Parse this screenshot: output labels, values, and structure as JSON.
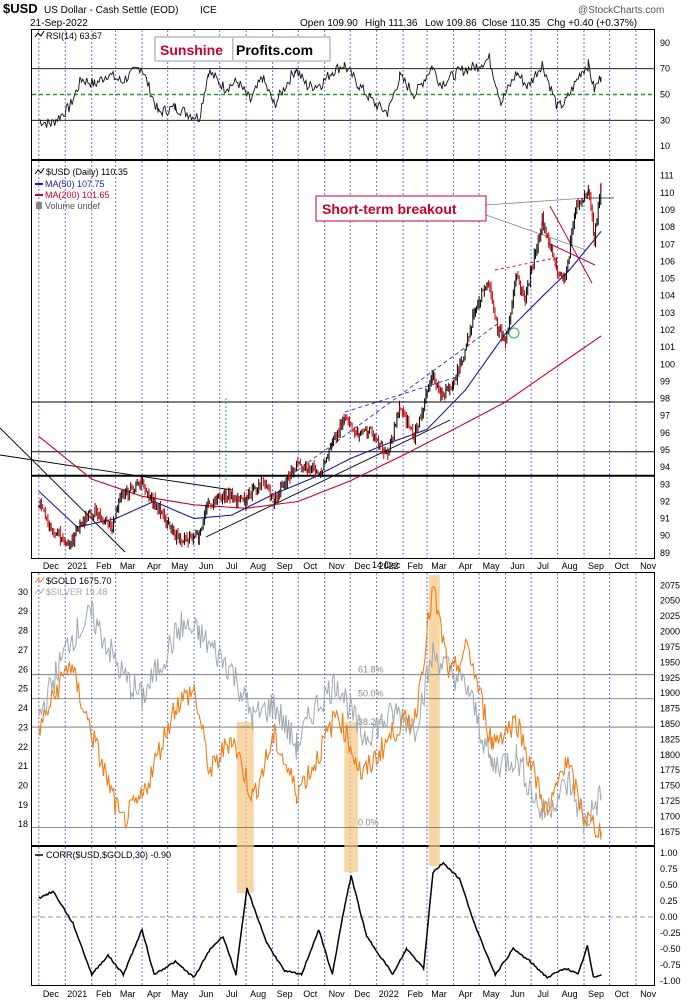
{
  "header": {
    "symbol": "$USD",
    "description": "US Dollar - Cash Settle (EOD)",
    "exchange": "ICE",
    "date": "21-Sep-2022",
    "open": "Open 109.90",
    "high": "High 111.36",
    "low": "Low 109.86",
    "close": "Close 110.35",
    "change": "Chg +0.40 (+0.37%)",
    "watermark": "@StockCharts.com",
    "brand_left": "Sunshine",
    "brand_right": "Profits.com"
  },
  "colors": {
    "price": "#000000",
    "up_candle": "#000000",
    "down_candle": "#cc0000",
    "ma50": "#1a1aaa",
    "ma200": "#cc0022",
    "gold": "#f07f1a",
    "silver": "#a0a8b0",
    "rsi_mid": "#229922",
    "highlight": "#f5c98a",
    "vgrid": "#3344dd",
    "brand_red": "#cc0033"
  },
  "x_axis": {
    "labels": [
      "Dec",
      "2021",
      "Feb",
      "Mar",
      "Apr",
      "May",
      "Jun",
      "Jul",
      "Aug",
      "Sep",
      "Oct",
      "Nov",
      "Dec",
      "2022",
      "Feb",
      "Mar",
      "Apr",
      "May",
      "Jun",
      "Jul",
      "Aug",
      "Sep",
      "Oct",
      "Nov"
    ],
    "bold_labels": [
      "2021",
      "2022"
    ]
  },
  "annotations": {
    "breakout_label": "Short-term breakout",
    "breakout_date": "2022-08-22",
    "breakout_level": 109.3,
    "gap_label": "14 Dec",
    "gold_highlight_periods": [
      {
        "start": "2021-07-21",
        "end": "2021-08-10"
      },
      {
        "start": "2021-11-24",
        "end": "2021-12-10"
      },
      {
        "start": "2022-03-03",
        "end": "2022-03-16"
      }
    ]
  },
  "chart_data": [
    {
      "type": "line",
      "panel": "rsi",
      "legend": "RSI(14) 63.67",
      "y_ticks": [
        "90",
        "70",
        "50",
        "30",
        "10"
      ],
      "ylim": [
        0,
        100
      ],
      "reference_lines": [
        70,
        50,
        30
      ],
      "series": [
        {
          "x": [
            "2020-12-01",
            "2020-12-15",
            "2021-01-06",
            "2021-01-20",
            "2021-02-05",
            "2021-02-20",
            "2021-03-08",
            "2021-03-31",
            "2021-04-20",
            "2021-05-10",
            "2021-05-26",
            "2021-06-07",
            "2021-06-18",
            "2021-07-07",
            "2021-07-22",
            "2021-08-06",
            "2021-08-20",
            "2021-09-03",
            "2021-09-28",
            "2021-10-12",
            "2021-10-28",
            "2021-11-10",
            "2021-11-24",
            "2021-12-10",
            "2021-12-31",
            "2022-01-14",
            "2022-01-28",
            "2022-02-15",
            "2022-03-07",
            "2022-03-17",
            "2022-04-08",
            "2022-04-28",
            "2022-05-13",
            "2022-05-27",
            "2022-06-14",
            "2022-06-27",
            "2022-07-14",
            "2022-08-01",
            "2022-08-10",
            "2022-08-29",
            "2022-09-06",
            "2022-09-13",
            "2022-09-21"
          ],
          "values": [
            30,
            27,
            40,
            62,
            58,
            66,
            60,
            72,
            36,
            40,
            35,
            32,
            68,
            55,
            60,
            45,
            63,
            42,
            70,
            56,
            58,
            68,
            73,
            58,
            42,
            36,
            64,
            50,
            72,
            58,
            68,
            72,
            78,
            44,
            67,
            56,
            74,
            40,
            44,
            68,
            73,
            54,
            63.67
          ]
        }
      ]
    },
    {
      "type": "line",
      "panel": "usd",
      "title": "$USD (Daily) 110.35",
      "legend": [
        {
          "name": "MA(50) 107.75",
          "color": "#1a1aaa"
        },
        {
          "name": "MA(200) 101.65",
          "color": "#cc0022"
        },
        {
          "name": "Volume undef",
          "color": "#888888"
        }
      ],
      "y_ticks": [
        "111",
        "110",
        "109",
        "108",
        "107",
        "106",
        "105",
        "104",
        "103",
        "102",
        "101",
        "100",
        "99",
        "98",
        "97",
        "96",
        "95",
        "94",
        "93",
        "92",
        "91",
        "90",
        "89"
      ],
      "ylim": [
        88.7,
        111.8
      ],
      "horizontal_lines": [
        97.8,
        94.9,
        93.5
      ],
      "series": [
        {
          "name": "$USD",
          "x": [
            "2020-12-01",
            "2020-12-14",
            "2021-01-06",
            "2021-01-19",
            "2021-02-05",
            "2021-02-25",
            "2021-03-08",
            "2021-03-31",
            "2021-04-15",
            "2021-04-29",
            "2021-05-10",
            "2021-05-25",
            "2021-06-07",
            "2021-06-16",
            "2021-07-07",
            "2021-07-30",
            "2021-08-20",
            "2021-09-03",
            "2021-09-29",
            "2021-10-12",
            "2021-10-28",
            "2021-11-10",
            "2021-11-24",
            "2021-12-10",
            "2021-12-22",
            "2022-01-14",
            "2022-01-28",
            "2022-02-14",
            "2022-03-07",
            "2022-03-17",
            "2022-04-01",
            "2022-04-13",
            "2022-04-28",
            "2022-05-12",
            "2022-05-23",
            "2022-06-01",
            "2022-06-14",
            "2022-06-24",
            "2022-07-14",
            "2022-08-01",
            "2022-08-10",
            "2022-08-22",
            "2022-09-06",
            "2022-09-13",
            "2022-09-21"
          ],
          "values": [
            92.0,
            90.5,
            89.4,
            90.8,
            91.4,
            90.5,
            92.3,
            93.2,
            92.0,
            90.8,
            90.0,
            89.7,
            90.0,
            91.8,
            92.4,
            92.0,
            93.2,
            92.0,
            94.2,
            94.0,
            93.8,
            95.3,
            96.8,
            96.0,
            96.2,
            94.7,
            97.5,
            95.8,
            99.3,
            98.2,
            98.9,
            100.5,
            103.6,
            104.8,
            102.0,
            101.5,
            105.0,
            103.8,
            108.4,
            105.4,
            105.0,
            109.0,
            110.2,
            107.4,
            110.35
          ]
        },
        {
          "name": "MA(50)",
          "x": [
            "2020-12-01",
            "2021-01-15",
            "2021-03-01",
            "2021-04-15",
            "2021-06-01",
            "2021-07-15",
            "2021-09-01",
            "2021-10-15",
            "2021-12-01",
            "2022-01-15",
            "2022-03-01",
            "2022-04-15",
            "2022-06-01",
            "2022-07-15",
            "2022-08-15",
            "2022-09-21"
          ],
          "values": [
            92.6,
            90.5,
            91.0,
            92.0,
            91.0,
            91.2,
            92.4,
            93.3,
            94.5,
            95.4,
            96.2,
            98.5,
            101.8,
            104.0,
            105.5,
            107.75
          ]
        },
        {
          "name": "MA(200)",
          "x": [
            "2020-12-01",
            "2021-02-01",
            "2021-04-01",
            "2021-06-01",
            "2021-08-01",
            "2021-10-01",
            "2021-12-01",
            "2022-02-01",
            "2022-04-01",
            "2022-06-01",
            "2022-08-01",
            "2022-09-21"
          ],
          "values": [
            95.8,
            93.3,
            92.3,
            91.8,
            91.6,
            92.0,
            93.2,
            94.7,
            96.2,
            97.8,
            99.9,
            101.65
          ]
        }
      ]
    },
    {
      "type": "line",
      "panel": "gold_silver",
      "y_left_ticks": [
        "30",
        "29",
        "28",
        "27",
        "26",
        "25",
        "24",
        "23",
        "22",
        "21",
        "20",
        "19",
        "18"
      ],
      "y_right_ticks": [
        "2075",
        "2050",
        "2025",
        "2000",
        "1975",
        "1950",
        "1925",
        "1900",
        "1875",
        "1850",
        "1825",
        "1800",
        "1775",
        "1750",
        "1725",
        "1700",
        "1675"
      ],
      "fib_levels": [
        {
          "label": "61.8%",
          "value": 1930
        },
        {
          "label": "50.0%",
          "value": 1891
        },
        {
          "label": "38.2%",
          "value": 1845
        },
        {
          "label": "0.0%",
          "value": 1682
        }
      ],
      "series": [
        {
          "name": "$GOLD 1675.70",
          "x": [
            "2020-12-01",
            "2021-01-06",
            "2021-02-01",
            "2021-03-08",
            "2021-04-01",
            "2021-05-10",
            "2021-06-01",
            "2021-06-20",
            "2021-07-15",
            "2021-08-09",
            "2021-09-03",
            "2021-09-29",
            "2021-10-20",
            "2021-11-16",
            "2021-12-15",
            "2022-01-25",
            "2022-02-15",
            "2022-03-08",
            "2022-03-28",
            "2022-04-18",
            "2022-05-16",
            "2022-06-14",
            "2022-07-21",
            "2022-08-10",
            "2022-09-01",
            "2022-09-21"
          ],
          "values": [
            1840,
            1950,
            1835,
            1690,
            1730,
            1880,
            1905,
            1770,
            1830,
            1730,
            1830,
            1740,
            1785,
            1870,
            1765,
            1845,
            1860,
            2070,
            1925,
            1975,
            1820,
            1855,
            1700,
            1795,
            1700,
            1675.7
          ],
          "unit_axis": "right"
        },
        {
          "name": "$SILVER 19.48",
          "x": [
            "2020-12-01",
            "2021-01-06",
            "2021-02-01",
            "2021-03-08",
            "2021-04-01",
            "2021-05-17",
            "2021-06-07",
            "2021-07-15",
            "2021-08-09",
            "2021-09-03",
            "2021-09-29",
            "2021-10-20",
            "2021-11-16",
            "2021-12-15",
            "2022-01-25",
            "2022-02-15",
            "2022-03-08",
            "2022-04-18",
            "2022-05-16",
            "2022-06-14",
            "2022-07-14",
            "2022-08-15",
            "2022-09-01",
            "2022-09-21"
          ],
          "values": [
            23.5,
            27.5,
            28.8,
            25.8,
            24.5,
            28.3,
            27.8,
            26.0,
            23.5,
            24.2,
            22.0,
            24.0,
            25.4,
            22.5,
            23.8,
            23.0,
            26.8,
            25.0,
            21.0,
            21.5,
            18.5,
            20.2,
            18.0,
            19.48
          ],
          "unit_axis": "left"
        }
      ]
    },
    {
      "type": "line",
      "panel": "correlation",
      "legend": "CORR($USD,$GOLD,30) -0.90",
      "y_ticks": [
        "1.00",
        "0.75",
        "0.50",
        "0.25",
        "0.00",
        "-0.25",
        "-0.50",
        "-0.75",
        "-1.00"
      ],
      "ylim": [
        -1.05,
        1.05
      ],
      "reference_lines": [
        0
      ],
      "series": [
        {
          "x": [
            "2020-12-01",
            "2020-12-18",
            "2021-01-10",
            "2021-02-01",
            "2021-02-20",
            "2021-03-10",
            "2021-04-01",
            "2021-04-15",
            "2021-05-10",
            "2021-06-01",
            "2021-06-20",
            "2021-07-05",
            "2021-07-20",
            "2021-08-02",
            "2021-08-25",
            "2021-09-15",
            "2021-10-05",
            "2021-10-25",
            "2021-11-10",
            "2021-11-22",
            "2021-12-02",
            "2021-12-20",
            "2022-01-20",
            "2022-02-05",
            "2022-02-25",
            "2022-03-08",
            "2022-03-20",
            "2022-04-08",
            "2022-04-28",
            "2022-05-20",
            "2022-06-10",
            "2022-06-30",
            "2022-07-20",
            "2022-08-10",
            "2022-08-25",
            "2022-09-05",
            "2022-09-12",
            "2022-09-21"
          ],
          "values": [
            0.3,
            0.4,
            -0.1,
            -0.9,
            -0.6,
            -0.9,
            -0.2,
            -0.9,
            -0.7,
            -0.95,
            -0.5,
            -0.3,
            -0.9,
            0.45,
            -0.4,
            -0.85,
            -0.9,
            -0.2,
            -0.9,
            0.0,
            0.65,
            -0.3,
            -0.9,
            -0.5,
            -0.8,
            0.7,
            0.85,
            0.6,
            -0.2,
            -0.9,
            -0.5,
            -0.7,
            -0.95,
            -0.8,
            -0.9,
            -0.45,
            -0.95,
            -0.9
          ]
        }
      ]
    }
  ]
}
